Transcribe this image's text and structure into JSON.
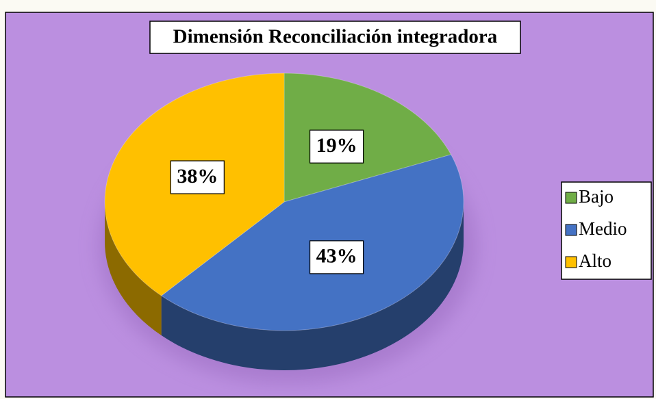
{
  "chart_data": {
    "type": "pie",
    "title": "Dimensión Reconciliación integradora",
    "categories": [
      "Bajo",
      "Medio",
      "Alto"
    ],
    "values": [
      19,
      43,
      38
    ],
    "value_labels": [
      "19%",
      "43%",
      "38%"
    ],
    "colors": [
      "#70ad47",
      "#4472c4",
      "#ffc000"
    ],
    "legend": "right"
  }
}
